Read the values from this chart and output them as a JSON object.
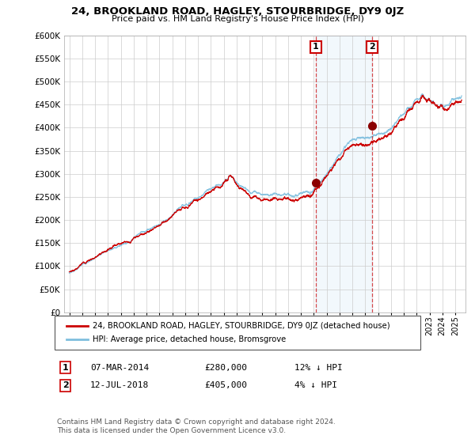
{
  "title": "24, BROOKLAND ROAD, HAGLEY, STOURBRIDGE, DY9 0JZ",
  "subtitle": "Price paid vs. HM Land Registry's House Price Index (HPI)",
  "legend_line1": "24, BROOKLAND ROAD, HAGLEY, STOURBRIDGE, DY9 0JZ (detached house)",
  "legend_line2": "HPI: Average price, detached house, Bromsgrove",
  "annotation1_label": "1",
  "annotation1_date": "07-MAR-2014",
  "annotation1_price": "£280,000",
  "annotation1_hpi": "12% ↓ HPI",
  "annotation1_year": 2014.17,
  "annotation1_value": 280000,
  "annotation2_label": "2",
  "annotation2_date": "12-JUL-2018",
  "annotation2_price": "£405,000",
  "annotation2_hpi": "4% ↓ HPI",
  "annotation2_year": 2018.54,
  "annotation2_value": 405000,
  "hpi_color": "#7fbfde",
  "price_color": "#cc0000",
  "vline_color": "#cc0000",
  "marker_color": "#8b0000",
  "shade_color": "#ddeeff",
  "ylim": [
    0,
    600000
  ],
  "yticks": [
    0,
    50000,
    100000,
    150000,
    200000,
    250000,
    300000,
    350000,
    400000,
    450000,
    500000,
    550000,
    600000
  ],
  "footnote": "Contains HM Land Registry data © Crown copyright and database right 2024.\nThis data is licensed under the Open Government Licence v3.0.",
  "background_color": "#ffffff",
  "grid_color": "#cccccc",
  "xstart": 1995,
  "xend": 2025
}
